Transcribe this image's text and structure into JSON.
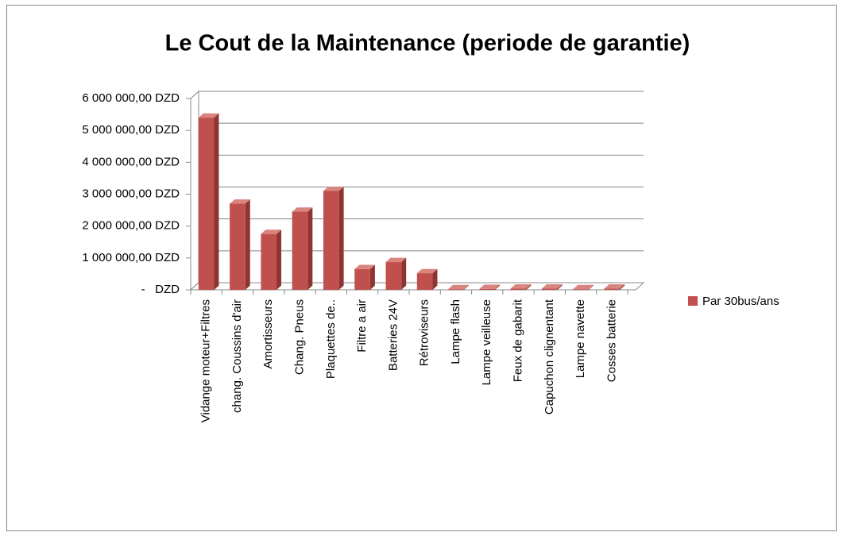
{
  "chart_data": {
    "type": "bar",
    "title": "Le Cout de la Maintenance (periode de garantie)",
    "categories": [
      "Vidange moteur+Filtres",
      "chang. Coussins d'air",
      "Amortisseurs",
      "Chang. Pneus",
      "Plaquettes de..",
      "Filtre a air",
      "Batteries 24V",
      "Rétroviseurs",
      "Lampe flash",
      "Lampe veilleuse",
      "Feux de gabarit",
      "Capuchon clignentant",
      "Lampe navette",
      "Cosses batterie"
    ],
    "series": [
      {
        "name": "Par 30bus/ans",
        "color": "#c0504d",
        "values": [
          5400000,
          2700000,
          1750000,
          2450000,
          3100000,
          650000,
          870000,
          520000,
          20000,
          30000,
          40000,
          40000,
          20000,
          40000
        ]
      }
    ],
    "ylim": [
      0,
      6000000
    ],
    "yticks": [
      {
        "value": 0,
        "label": "-   DZD"
      },
      {
        "value": 1000000,
        "label": "1 000 000,00 DZD"
      },
      {
        "value": 2000000,
        "label": "2 000 000,00 DZD"
      },
      {
        "value": 3000000,
        "label": "3 000 000,00 DZD"
      },
      {
        "value": 4000000,
        "label": "4 000 000,00 DZD"
      },
      {
        "value": 5000000,
        "label": "5 000 000,00 DZD"
      },
      {
        "value": 6000000,
        "label": "6 000 000,00 DZD"
      }
    ],
    "grid": true,
    "legend": "right"
  }
}
